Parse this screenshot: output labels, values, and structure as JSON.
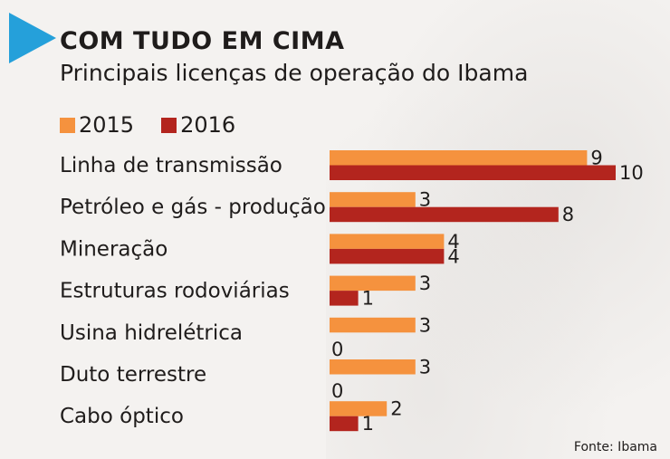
{
  "header": {
    "title": "COM TUDO EM CIMA",
    "subtitle": "Principais licenças de operação do Ibama"
  },
  "source": "Fonte: Ibama",
  "colors": {
    "accent_triangle": "#25a0da",
    "series_2015": "#f5923e",
    "series_2016": "#b3251e"
  },
  "chart_data": {
    "type": "bar",
    "orientation": "horizontal",
    "categories": [
      "Linha de transmissão",
      "Petróleo e gás - produção",
      "Mineração",
      "Estruturas rodoviárias",
      "Usina hidrelétrica",
      "Duto terrestre",
      "Cabo óptico"
    ],
    "series": [
      {
        "name": "2015",
        "color": "#f5923e",
        "values": [
          9,
          3,
          4,
          3,
          3,
          3,
          2
        ]
      },
      {
        "name": "2016",
        "color": "#b3251e",
        "values": [
          10,
          8,
          4,
          1,
          0,
          0,
          1
        ]
      }
    ],
    "title": "COM TUDO EM CIMA",
    "subtitle": "Principais licenças de operação do Ibama",
    "xlim": [
      0,
      10
    ],
    "legend_position": "top-left",
    "grid": false
  }
}
